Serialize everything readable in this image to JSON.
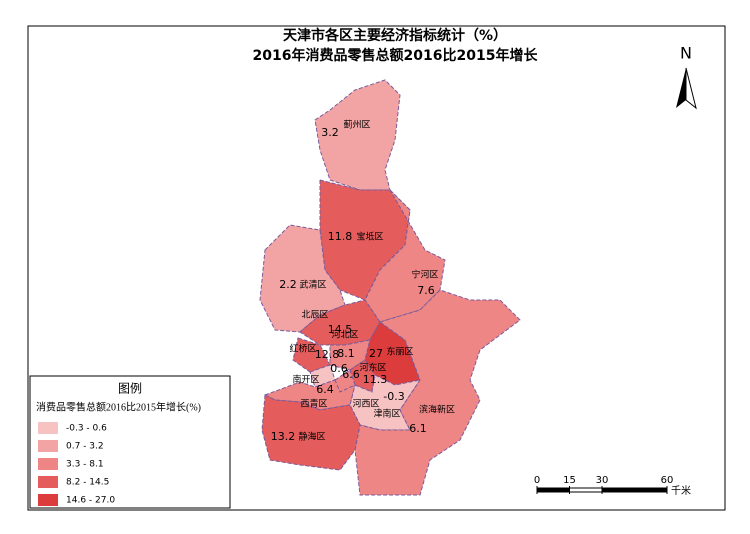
{
  "title": "天津市各区主要经济指标统计（%）",
  "subtitle": "2016年消费品零售总额2016比2015年增长",
  "north": "N",
  "districts": [
    {
      "name": "蓟州区",
      "value": 3.2,
      "color": "#f2a4a4"
    },
    {
      "name": "宝坻区",
      "value": 11.8,
      "color": "#e45c5c"
    },
    {
      "name": "宁河区",
      "value": 7.6,
      "color": "#ee8686"
    },
    {
      "name": "武清区",
      "value": 2.2,
      "color": "#f2a4a4"
    },
    {
      "name": "北辰区",
      "value": 14.5,
      "color": "#e45c5c"
    },
    {
      "name": "红桥区",
      "value": 12.8,
      "color": "#e45c5c"
    },
    {
      "name": "河北区",
      "value": 8.1,
      "color": "#ee8686"
    },
    {
      "name": "东丽区",
      "value": 27,
      "color": "#dc3c3c"
    },
    {
      "name": "南开区",
      "value": 0.6,
      "color": "#f7c2c2"
    },
    {
      "name": "河东区",
      "value": 11.3,
      "color": "#e45c5c"
    },
    {
      "name": "西青区",
      "value": 6.4,
      "color": "#ee8686"
    },
    {
      "name": "河西区",
      "value": 6.6,
      "color": "#ee8686"
    },
    {
      "name": "津南区",
      "value": -0.3,
      "color": "#f7c2c2"
    },
    {
      "name": "滨海新区",
      "value": 6.1,
      "color": "#ee8686"
    },
    {
      "name": "静海区",
      "value": 13.2,
      "color": "#e45c5c"
    }
  ],
  "legend": {
    "title": "图例",
    "subtitle": "消费品零售总额2016比2015年增长(%)",
    "classes": [
      {
        "label": "-0.3 - 0.6",
        "color": "#f7c2c2"
      },
      {
        "label": "0.7 - 3.2",
        "color": "#f2a4a4"
      },
      {
        "label": "3.3 - 8.1",
        "color": "#ee8686"
      },
      {
        "label": "8.2 - 14.5",
        "color": "#e45c5c"
      },
      {
        "label": "14.6 - 27.0",
        "color": "#dc3c3c"
      }
    ]
  },
  "scale_bar": {
    "ticks": [
      0,
      15,
      30,
      60
    ],
    "unit": "千米"
  }
}
